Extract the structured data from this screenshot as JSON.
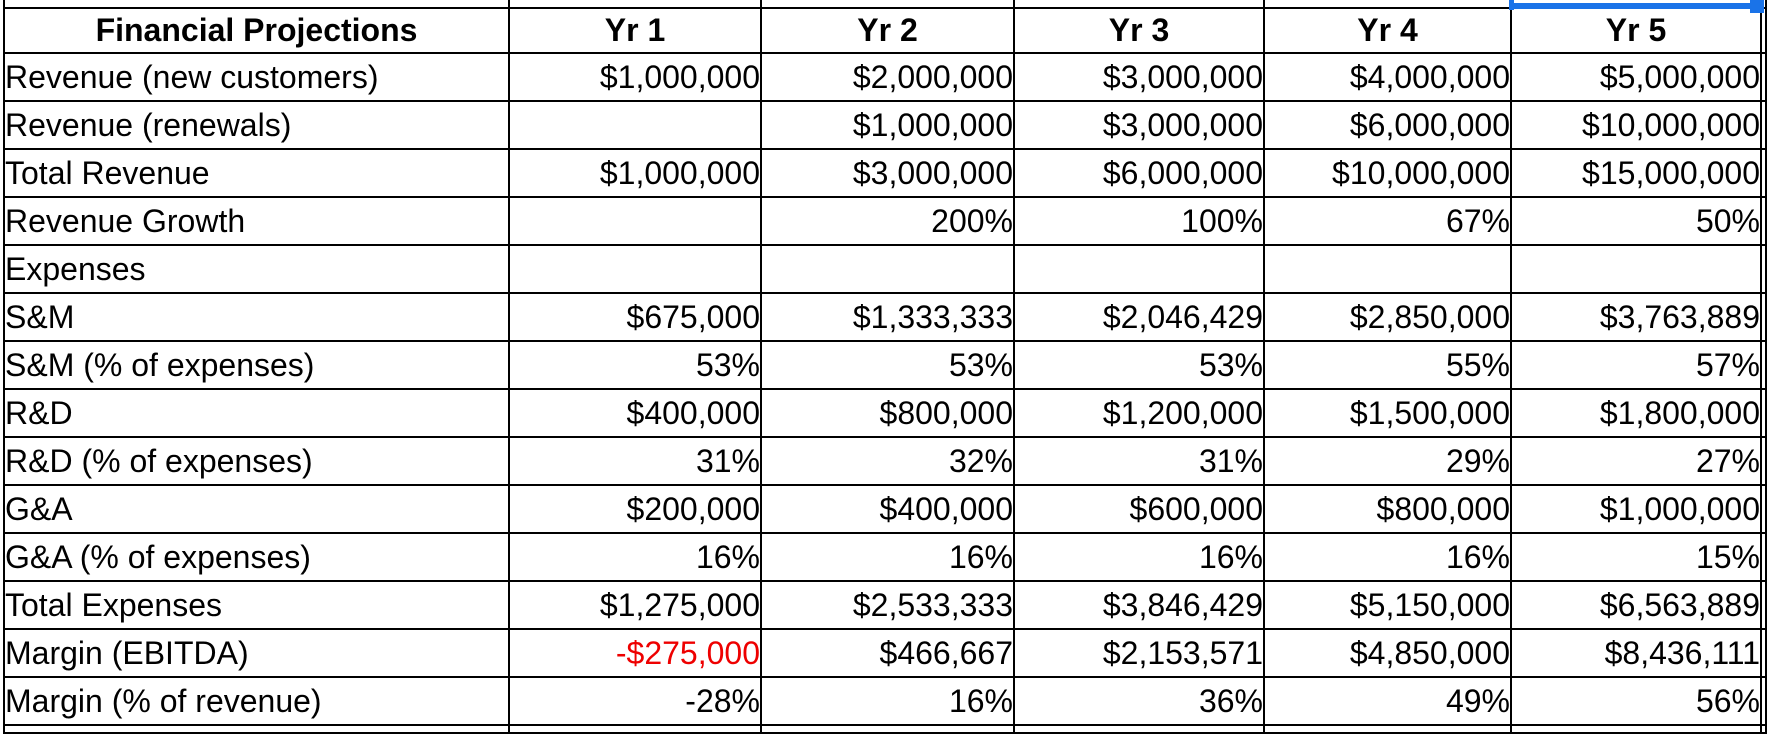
{
  "colors": {
    "row_highlight": "#bfdfea",
    "negative_value": "#ee0000",
    "selection": "#1a73e8",
    "grid_line": "#000000"
  },
  "selection": {
    "column": "Yr 5",
    "fill_handle": true
  },
  "table": {
    "header": [
      "Financial Projections",
      "Yr 1",
      "Yr 2",
      "Yr 3",
      "Yr 4",
      "Yr 5"
    ],
    "rows": [
      {
        "label": "Revenue (new customers)",
        "values": [
          "$1,000,000",
          "$2,000,000",
          "$3,000,000",
          "$4,000,000",
          "$5,000,000"
        ],
        "highlight": true
      },
      {
        "label": "Revenue (renewals)",
        "values": [
          "",
          "$1,000,000",
          "$3,000,000",
          "$6,000,000",
          "$10,000,000"
        ],
        "highlight": false
      },
      {
        "label": "Total Revenue",
        "values": [
          "$1,000,000",
          "$3,000,000",
          "$6,000,000",
          "$10,000,000",
          "$15,000,000"
        ],
        "highlight": false
      },
      {
        "label": "Revenue Growth",
        "values": [
          "",
          "200%",
          "100%",
          "67%",
          "50%"
        ],
        "highlight": false
      },
      {
        "label": "Expenses",
        "values": [
          "",
          "",
          "",
          "",
          ""
        ],
        "highlight": false
      },
      {
        "label": "S&M",
        "values": [
          "$675,000",
          "$1,333,333",
          "$2,046,429",
          "$2,850,000",
          "$3,763,889"
        ],
        "highlight": false
      },
      {
        "label": "S&M (% of expenses)",
        "values": [
          "53%",
          "53%",
          "53%",
          "55%",
          "57%"
        ],
        "highlight": false
      },
      {
        "label": "R&D",
        "values": [
          "$400,000",
          "$800,000",
          "$1,200,000",
          "$1,500,000",
          "$1,800,000"
        ],
        "highlight": true
      },
      {
        "label": "R&D (% of expenses)",
        "values": [
          "31%",
          "32%",
          "31%",
          "29%",
          "27%"
        ],
        "highlight": false
      },
      {
        "label": "G&A",
        "values": [
          "$200,000",
          "$400,000",
          "$600,000",
          "$800,000",
          "$1,000,000"
        ],
        "highlight": true
      },
      {
        "label": "G&A (% of expenses)",
        "values": [
          "16%",
          "16%",
          "16%",
          "16%",
          "15%"
        ],
        "highlight": false
      },
      {
        "label": "Total Expenses",
        "values": [
          "$1,275,000",
          "$2,533,333",
          "$3,846,429",
          "$5,150,000",
          "$6,563,889"
        ],
        "highlight": false
      },
      {
        "label": "Margin (EBITDA)",
        "values": [
          "-$275,000",
          "$466,667",
          "$2,153,571",
          "$4,850,000",
          "$8,436,111"
        ],
        "highlight": false,
        "negative_cells": [
          0
        ]
      },
      {
        "label": "Margin (% of revenue)",
        "values": [
          "-28%",
          "16%",
          "36%",
          "49%",
          "56%"
        ],
        "highlight": false
      }
    ]
  }
}
